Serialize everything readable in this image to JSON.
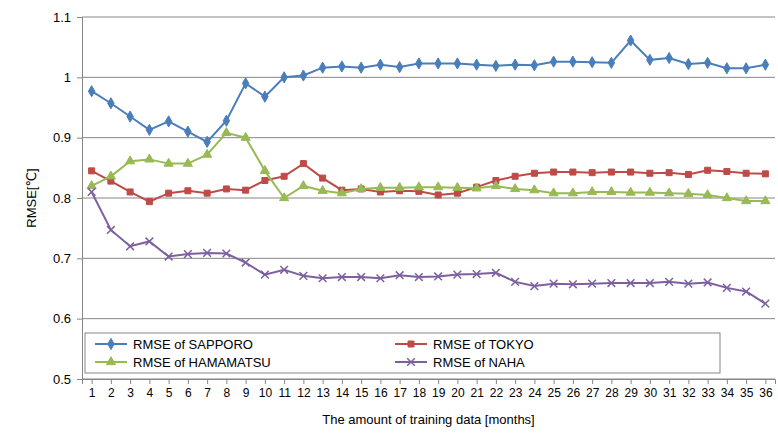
{
  "chart_data": {
    "type": "line",
    "x_label": "The amount of training data [months]",
    "y_label": "RMSE[℃]",
    "categories": [
      1,
      2,
      3,
      4,
      5,
      6,
      7,
      8,
      9,
      10,
      11,
      12,
      13,
      14,
      15,
      16,
      17,
      18,
      19,
      20,
      21,
      22,
      23,
      24,
      25,
      26,
      27,
      28,
      29,
      30,
      31,
      32,
      33,
      34,
      35,
      36
    ],
    "ylim": [
      0.5,
      1.1
    ],
    "yticks": [
      0.5,
      0.6,
      0.7,
      0.8,
      0.9,
      1,
      1.1
    ],
    "grid": true,
    "legend": "lower left",
    "series": [
      {
        "name": "RMSE of SAPPORO",
        "color": "#4a7ebb",
        "marker": "diamond",
        "values": [
          0.977,
          0.957,
          0.935,
          0.913,
          0.927,
          0.91,
          0.893,
          0.928,
          0.99,
          0.968,
          1.0,
          1.003,
          1.016,
          1.018,
          1.016,
          1.021,
          1.017,
          1.023,
          1.023,
          1.023,
          1.021,
          1.019,
          1.021,
          1.02,
          1.026,
          1.026,
          1.025,
          1.024,
          1.061,
          1.029,
          1.032,
          1.022,
          1.024,
          1.015,
          1.015,
          1.021
        ]
      },
      {
        "name": "RMSE of TOKYO",
        "color": "#be4b48",
        "marker": "square",
        "values": [
          0.845,
          0.828,
          0.81,
          0.794,
          0.808,
          0.812,
          0.808,
          0.815,
          0.813,
          0.829,
          0.836,
          0.857,
          0.833,
          0.813,
          0.815,
          0.81,
          0.812,
          0.811,
          0.805,
          0.808,
          0.818,
          0.829,
          0.836,
          0.841,
          0.843,
          0.843,
          0.842,
          0.843,
          0.843,
          0.841,
          0.842,
          0.839,
          0.846,
          0.844,
          0.841,
          0.84
        ]
      },
      {
        "name": "RMSE of HAMAMATSU",
        "color": "#98b954",
        "marker": "triangle",
        "values": [
          0.82,
          0.836,
          0.861,
          0.864,
          0.857,
          0.857,
          0.872,
          0.908,
          0.9,
          0.845,
          0.8,
          0.82,
          0.812,
          0.808,
          0.815,
          0.817,
          0.817,
          0.818,
          0.818,
          0.817,
          0.816,
          0.82,
          0.815,
          0.813,
          0.808,
          0.808,
          0.81,
          0.81,
          0.809,
          0.809,
          0.808,
          0.807,
          0.805,
          0.8,
          0.795,
          0.795
        ]
      },
      {
        "name": "RMSE of NAHA",
        "color": "#7d60a0",
        "marker": "x",
        "values": [
          0.81,
          0.747,
          0.72,
          0.728,
          0.703,
          0.707,
          0.709,
          0.708,
          0.693,
          0.673,
          0.681,
          0.671,
          0.667,
          0.669,
          0.669,
          0.667,
          0.672,
          0.669,
          0.67,
          0.673,
          0.674,
          0.676,
          0.661,
          0.654,
          0.658,
          0.657,
          0.658,
          0.659,
          0.659,
          0.659,
          0.661,
          0.658,
          0.66,
          0.651,
          0.645,
          0.625
        ]
      }
    ]
  }
}
